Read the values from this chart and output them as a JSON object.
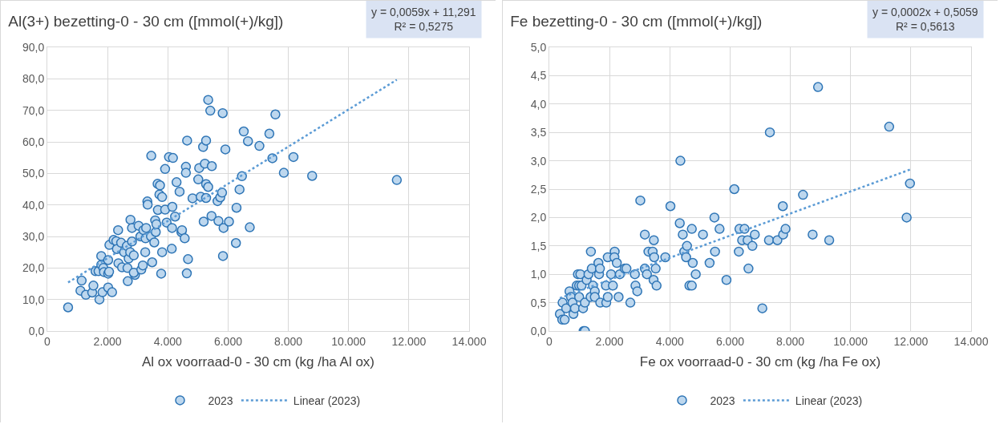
{
  "chart_data": [
    {
      "type": "scatter",
      "title": "Al(3+) bezetting-0 - 30 cm ([mmol(+)/kg])",
      "xlabel": "Al ox voorraad-0 - 30 cm (kg /ha Al ox)",
      "annotations": [
        "y = 0,0059x + 11,291\nR² = 0,5275"
      ],
      "grid": true,
      "legend": "bottom",
      "xlim": [
        0,
        14000
      ],
      "xticks": [
        0,
        {
          "value": 2000,
          "label": "2.000"
        },
        {
          "value": 4000,
          "label": "4.000"
        },
        {
          "value": 6000,
          "label": "6.000"
        },
        {
          "value": 8000,
          "label": "8.000"
        },
        {
          "value": 10000,
          "label": "10.000"
        },
        {
          "value": 12000,
          "label": "12.000"
        },
        {
          "value": 14000,
          "label": "14.000"
        }
      ],
      "ylim": [
        0,
        90
      ],
      "yticks": [
        {
          "value": 0,
          "label": "0,0"
        },
        {
          "value": 10,
          "label": "10,0"
        },
        {
          "value": 20,
          "label": "20,0"
        },
        {
          "value": 30,
          "label": "30,0"
        },
        {
          "value": 40,
          "label": "40,0"
        },
        {
          "value": 50,
          "label": "50,0"
        },
        {
          "value": 60,
          "label": "60,0"
        },
        {
          "value": 70,
          "label": "70,0"
        },
        {
          "value": 80,
          "label": "80,0"
        },
        {
          "value": 90,
          "label": "90,0"
        }
      ],
      "series": [
        {
          "name": "2023",
          "marker": "circle",
          "color": "#bdd7ee",
          "x": [
            690,
            1140,
            1100,
            1280,
            1490,
            1530,
            1730,
            1830,
            2020,
            2150,
            1600,
            1700,
            1790,
            1790,
            1860,
            1880,
            2020,
            2050,
            2020,
            2060,
            2200,
            2290,
            2350,
            2360,
            2480,
            2310,
            2450,
            2550,
            2640,
            2700,
            2660,
            2670,
            2750,
            2760,
            2810,
            2810,
            2870,
            2910,
            2870,
            3030,
            3090,
            3120,
            3170,
            3190,
            3260,
            3250,
            3280,
            3320,
            3330,
            3450,
            3440,
            3480,
            3550,
            3580,
            3600,
            3620,
            3660,
            3740,
            3720,
            3810,
            3670,
            3780,
            3810,
            3910,
            3910,
            3960,
            4040,
            4170,
            4150,
            4140,
            4130,
            4240,
            4290,
            4390,
            4450,
            4470,
            4560,
            4600,
            4600,
            4640,
            4670,
            4630,
            4820,
            5010,
            5040,
            5090,
            5170,
            5270,
            5230,
            5270,
            5340,
            5270,
            5190,
            5340,
            5410,
            5450,
            5460,
            5650,
            5740,
            5800,
            5680,
            5850,
            5820,
            5910,
            5830,
            6030,
            6260,
            6280,
            6380,
            6460,
            6520,
            6660,
            6720,
            7040,
            7370,
            7470,
            7570,
            7850,
            8170,
            8790,
            11600
          ],
          "values": [
            7.5,
            16.0,
            12.8,
            11.5,
            12.2,
            14.4,
            10.0,
            12.3,
            13.8,
            12.3,
            19.0,
            19.0,
            23.8,
            21.0,
            20.0,
            18.7,
            18.2,
            18.8,
            22.5,
            27.3,
            28.9,
            28.5,
            32.0,
            21.5,
            20.2,
            26.0,
            28.0,
            25.0,
            27.0,
            23.0,
            20.0,
            15.8,
            25.0,
            35.3,
            32.7,
            28.4,
            24.0,
            17.8,
            18.5,
            33.4,
            30.0,
            19.5,
            20.8,
            32.0,
            29.4,
            25.0,
            32.7,
            41.1,
            40.1,
            55.6,
            30.0,
            21.8,
            28.1,
            35.1,
            31.4,
            33.9,
            46.7,
            46.2,
            43.3,
            42.5,
            38.4,
            18.2,
            25.0,
            51.4,
            38.5,
            34.4,
            55.2,
            54.9,
            39.4,
            32.7,
            26.1,
            36.3,
            47.2,
            44.2,
            31.4,
            32.0,
            29.4,
            52.1,
            50.2,
            60.4,
            22.8,
            18.3,
            42.1,
            48.1,
            51.7,
            42.6,
            58.4,
            60.4,
            53.1,
            46.6,
            45.7,
            42.2,
            34.7,
            73.3,
            69.9,
            36.5,
            52.3,
            41.2,
            42.4,
            43.9,
            34.9,
            32.7,
            69.1,
            57.6,
            23.8,
            34.7,
            27.9,
            39.1,
            44.9,
            49.1,
            63.3,
            60.2,
            32.9,
            58.7,
            62.6,
            54.8,
            68.7,
            50.2,
            55.2,
            49.2,
            47.9
          ]
        },
        {
          "name": "Linear (2023)",
          "type": "line",
          "line_style": "dotted",
          "marker": "none",
          "color": "#5b9bd5",
          "x": [
            690,
            11600
          ],
          "values": [
            15.4,
            79.7
          ]
        }
      ]
    },
    {
      "type": "scatter",
      "title": "Fe bezetting-0 - 30 cm ([mmol(+)/kg])",
      "xlabel": "Fe ox voorraad-0 - 30 cm (kg /ha Fe ox)",
      "annotations": [
        "y = 0,0002x + 0,5059\nR² = 0,5613"
      ],
      "grid": true,
      "legend": "bottom",
      "xlim": [
        0,
        14000
      ],
      "xticks": [
        0,
        {
          "value": 2000,
          "label": "2.000"
        },
        {
          "value": 4000,
          "label": "4.000"
        },
        {
          "value": 6000,
          "label": "6.000"
        },
        {
          "value": 8000,
          "label": "8.000"
        },
        {
          "value": 10000,
          "label": "10.000"
        },
        {
          "value": 12000,
          "label": "12.000"
        },
        {
          "value": 14000,
          "label": "14.000"
        }
      ],
      "ylim": [
        0,
        5
      ],
      "yticks": [
        {
          "value": 0,
          "label": "0,0"
        },
        {
          "value": 0.5,
          "label": "0,5"
        },
        {
          "value": 1,
          "label": "1,0"
        },
        {
          "value": 1.5,
          "label": "1,5"
        },
        {
          "value": 2,
          "label": "2,0"
        },
        {
          "value": 2.5,
          "label": "2,5"
        },
        {
          "value": 3,
          "label": "3,0"
        },
        {
          "value": 3.5,
          "label": "3,5"
        },
        {
          "value": 4,
          "label": "4,0"
        },
        {
          "value": 4.5,
          "label": "4,5"
        },
        {
          "value": 5,
          "label": "5,0"
        }
      ],
      "series": [
        {
          "name": "2023",
          "marker": "circle",
          "color": "#bdd7ee",
          "x": [
            350,
            430,
            510,
            440,
            560,
            670,
            720,
            770,
            800,
            850,
            910,
            950,
            990,
            990,
            1030,
            1070,
            1120,
            1140,
            1180,
            1180,
            1240,
            1300,
            1370,
            1380,
            1410,
            1450,
            1510,
            1510,
            1630,
            1650,
            1680,
            1690,
            1890,
            1880,
            1940,
            1940,
            2050,
            2110,
            2170,
            2160,
            2240,
            2300,
            2340,
            2500,
            2560,
            2690,
            2840,
            2860,
            2920,
            3020,
            3170,
            3170,
            3240,
            3290,
            3430,
            3460,
            3470,
            3480,
            3530,
            3560,
            3850,
            4020,
            4330,
            4350,
            4430,
            4480,
            4540,
            4570,
            4650,
            4730,
            4730,
            4760,
            4860,
            5100,
            5320,
            5480,
            5500,
            5650,
            5880,
            6140,
            6290,
            6310,
            6400,
            6480,
            6580,
            6610,
            6740,
            6820,
            7070,
            7290,
            7320,
            7570,
            7760,
            7750,
            7840,
            8420,
            8740,
            8920,
            9290,
            11280,
            11860,
            11970
          ],
          "values": [
            0.3,
            0.2,
            0.2,
            0.5,
            0.4,
            0.7,
            0.6,
            0.5,
            0.3,
            0.4,
            0.8,
            1.0,
            0.8,
            0.6,
            1.0,
            0.8,
            0.4,
            0.0,
            0.0,
            0.5,
            0.9,
            1.0,
            0.6,
            1.4,
            1.1,
            0.8,
            0.7,
            0.6,
            1.2,
            1.0,
            1.1,
            0.5,
            0.5,
            0.8,
            0.6,
            1.3,
            1.0,
            0.8,
            1.4,
            1.3,
            1.2,
            0.6,
            1.0,
            1.1,
            1.1,
            0.5,
            1.0,
            0.8,
            0.7,
            2.3,
            1.7,
            1.1,
            1.0,
            1.4,
            1.4,
            0.9,
            1.6,
            1.3,
            1.1,
            0.8,
            1.3,
            2.2,
            1.9,
            3.0,
            1.7,
            1.4,
            1.3,
            1.5,
            0.8,
            0.8,
            1.8,
            1.2,
            1.0,
            1.7,
            1.2,
            2.0,
            1.4,
            1.8,
            0.9,
            2.5,
            1.4,
            1.8,
            1.6,
            1.8,
            1.6,
            1.1,
            1.5,
            1.7,
            0.4,
            1.6,
            3.5,
            1.6,
            1.7,
            2.2,
            1.8,
            2.4,
            1.7,
            4.3,
            1.6,
            3.6,
            2.0,
            2.6
          ]
        },
        {
          "name": "Linear (2023)",
          "type": "line",
          "line_style": "dotted",
          "marker": "none",
          "color": "#5b9bd5",
          "x": [
            350,
            12000
          ],
          "values": [
            0.58,
            2.85
          ]
        }
      ]
    }
  ]
}
